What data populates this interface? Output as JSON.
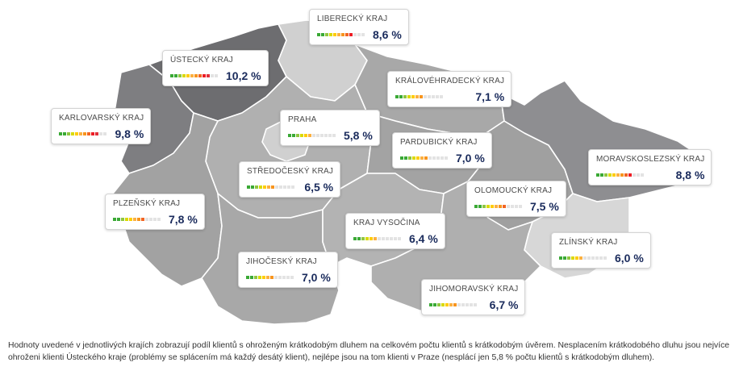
{
  "colors": {
    "scale": [
      "#3aa935",
      "#8ec63f",
      "#d9d900",
      "#ffcc00",
      "#fbb040",
      "#f7941d",
      "#f26522",
      "#ed1c24",
      "#e0303a",
      "#c1272d"
    ],
    "empty": "#e3e3e3",
    "value_text": "#1a2b5c"
  },
  "regions": [
    {
      "id": "liberecky",
      "name": "LIBERECKÝ KRAJ",
      "value": "8,6 %",
      "level": 8.6,
      "fill": "#d0d0d0"
    },
    {
      "id": "ustecky",
      "name": "ÚSTECKÝ KRAJ",
      "value": "10,2 %",
      "level": 10.2,
      "fill": "#6d6d70"
    },
    {
      "id": "kralovehradecky",
      "name": "KRÁLOVÉHRADECKÝ KRAJ",
      "value": "7,1 %",
      "level": 7.1,
      "fill": "#a8a8a8"
    },
    {
      "id": "karlovarsky",
      "name": "KARLOVARSKÝ KRAJ",
      "value": "9,8 %",
      "level": 9.8,
      "fill": "#7e7e81"
    },
    {
      "id": "praha",
      "name": "PRAHA",
      "value": "5,8 %",
      "level": 5.8,
      "fill": "#d0d0d0"
    },
    {
      "id": "pardubicky",
      "name": "PARDUBICKÝ KRAJ",
      "value": "7,0 %",
      "level": 7.0,
      "fill": "#a3a3a3"
    },
    {
      "id": "moravskoslezsky",
      "name": "MORAVSKOSLEZSKÝ KRAJ",
      "value": "8,8 %",
      "level": 8.8,
      "fill": "#8e8e91"
    },
    {
      "id": "stredocesky",
      "name": "STŘEDOČESKÝ KRAJ",
      "value": "6,5 %",
      "level": 6.5,
      "fill": "#b0b0b0"
    },
    {
      "id": "olomoucky",
      "name": "OLOMOUCKÝ KRAJ",
      "value": "7,5 %",
      "level": 7.5,
      "fill": "#a0a0a0"
    },
    {
      "id": "plzensky",
      "name": "PLZEŇSKÝ KRAJ",
      "value": "7,8 %",
      "level": 7.8,
      "fill": "#a2a2a2"
    },
    {
      "id": "vysocina",
      "name": "KRAJ VYSOČINA",
      "value": "6,4 %",
      "level": 6.4,
      "fill": "#b3b3b3"
    },
    {
      "id": "zlinsky",
      "name": "ZLÍNSKÝ KRAJ",
      "value": "6,0 %",
      "level": 6.0,
      "fill": "#d7d7d7"
    },
    {
      "id": "jihocesky",
      "name": "JIHOČESKÝ KRAJ",
      "value": "7,0 %",
      "level": 7.0,
      "fill": "#a8a8a8"
    },
    {
      "id": "jihomoravsky",
      "name": "JIHOMORAVSKÝ KRAJ",
      "value": "6,7 %",
      "level": 6.7,
      "fill": "#afafaf"
    }
  ],
  "caption": "Hodnoty uvedené v jednotlivých krajích zobrazují podíl klientů s ohroženým krátkodobým dluhem na celkovém počtu klientů s krátkodobým úvěrem. Nesplacením krátkodobého dluhu jsou nejvíce ohroženi klienti Ústeckého kraje (problémy se splácením má každý desátý klient), nejlépe jsou na tom klienti v Praze (nesplácí jen 5,8 % počtu klientů s krátkodobým dluhem)."
}
